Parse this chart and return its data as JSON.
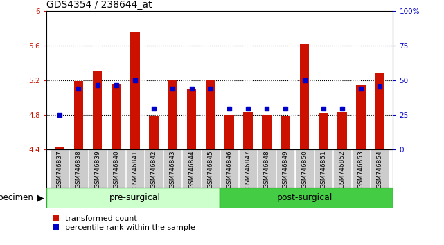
{
  "title": "GDS4354 / 238644_at",
  "categories": [
    "GSM746837",
    "GSM746838",
    "GSM746839",
    "GSM746840",
    "GSM746841",
    "GSM746842",
    "GSM746843",
    "GSM746844",
    "GSM746845",
    "GSM746846",
    "GSM746847",
    "GSM746848",
    "GSM746849",
    "GSM746850",
    "GSM746851",
    "GSM746852",
    "GSM746853",
    "GSM746854"
  ],
  "bar_values": [
    4.43,
    5.19,
    5.3,
    5.15,
    5.76,
    4.79,
    5.2,
    5.1,
    5.2,
    4.8,
    4.83,
    4.8,
    4.79,
    5.62,
    4.82,
    4.83,
    5.14,
    5.28
  ],
  "percentile_yvals": [
    4.8,
    5.1,
    5.14,
    5.14,
    5.2,
    4.87,
    5.1,
    5.1,
    5.1,
    4.87,
    4.87,
    4.87,
    4.87,
    5.2,
    4.87,
    4.87,
    5.1,
    5.13
  ],
  "bar_bottom": 4.4,
  "ylim_left": [
    4.4,
    6.0
  ],
  "ylim_right": [
    0,
    100
  ],
  "yticks_left": [
    4.4,
    4.8,
    5.2,
    5.6,
    6.0
  ],
  "ytick_labels_left": [
    "4.4",
    "4.8",
    "5.2",
    "5.6",
    "6"
  ],
  "yticks_right": [
    0,
    25,
    50,
    75,
    100
  ],
  "ytick_labels_right": [
    "0",
    "25",
    "50",
    "75",
    "100%"
  ],
  "bar_color": "#cc1100",
  "percentile_color": "#0000cc",
  "pre_surgical_count": 9,
  "pre_label": "pre-surgical",
  "post_label": "post-surgical",
  "specimen_label": "specimen",
  "legend_bar_label": "transformed count",
  "legend_pct_label": "percentile rank within the sample",
  "pre_color": "#ccffcc",
  "post_color": "#44cc44",
  "xtick_bg": "#cccccc",
  "title_fontsize": 10,
  "tick_fontsize": 7.5,
  "cat_fontsize": 6.5,
  "group_fontsize": 9,
  "legend_fontsize": 8
}
